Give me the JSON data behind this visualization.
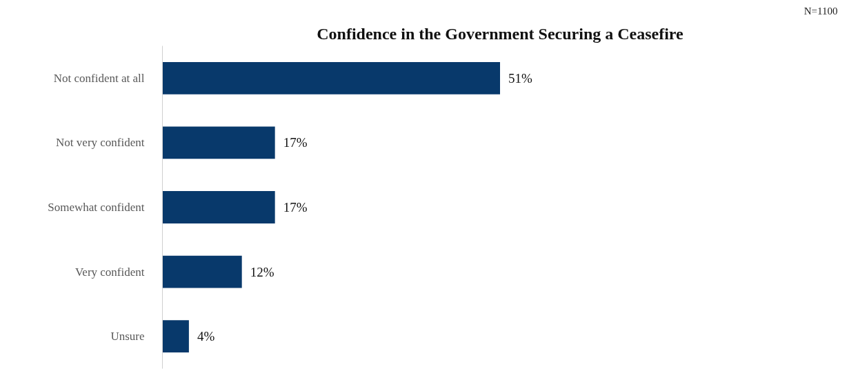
{
  "chart_data": {
    "type": "bar",
    "orientation": "horizontal",
    "title": "Confidence in the Government Securing a Ceasefire",
    "categories": [
      "Not confident at all",
      "Not very confident",
      "Somewhat confident",
      "Very confident",
      "Unsure"
    ],
    "values": [
      51,
      17,
      17,
      12,
      4
    ],
    "value_labels": [
      "51%",
      "17%",
      "17%",
      "12%",
      "4%"
    ],
    "color": "#08396b",
    "annotations": [
      "N=1100"
    ]
  }
}
